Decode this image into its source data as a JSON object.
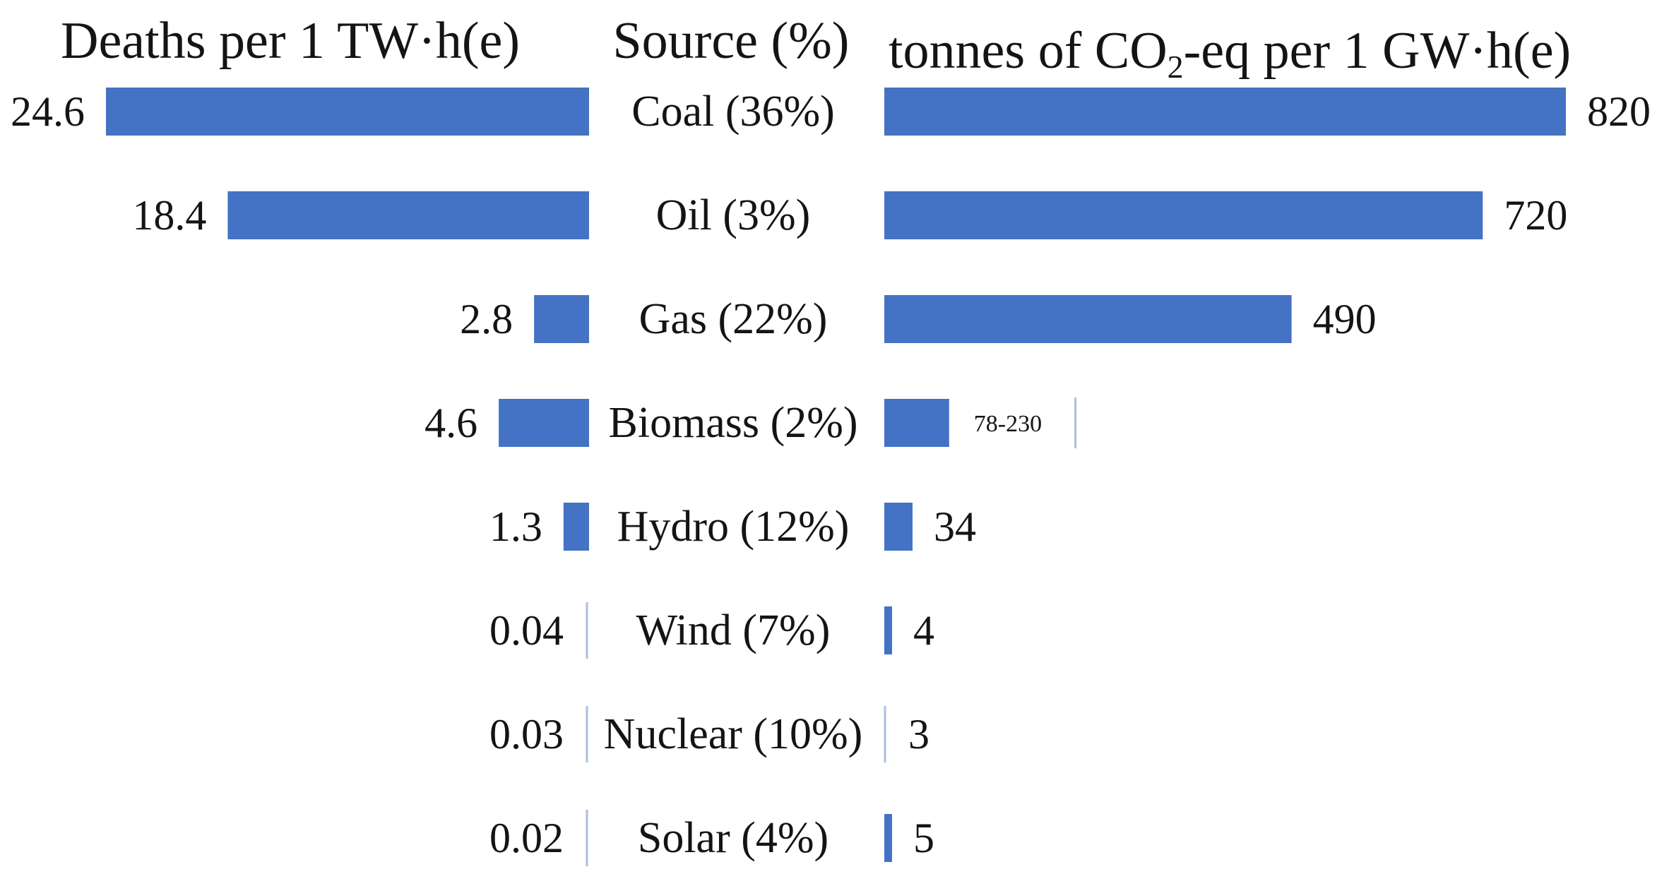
{
  "chart_data": {
    "type": "bar",
    "layout": "back-to-back horizontal bars",
    "headers": {
      "left_title": "Deaths per 1 TW·h(e)",
      "center_title": "Source (%)",
      "right_title_prefix": "tonnes of CO",
      "right_title_sub": "2",
      "right_title_suffix": "-eq per 1 GW·h(e)"
    },
    "categories": [
      "Coal (36%)",
      "Oil (3%)",
      "Gas (22%)",
      "Biomass (2%)",
      "Hydro (12%)",
      "Wind (7%)",
      "Nuclear (10%)",
      "Solar (4%)"
    ],
    "series": [
      {
        "values": [
          24.6,
          18.4,
          2.8,
          4.6,
          1.3,
          0.04,
          0.03,
          0.02
        ],
        "labels": [
          "24.6",
          "18.4",
          "2.8",
          "4.6",
          "1.3",
          "0.04",
          "0.03",
          "0.02"
        ]
      },
      {
        "values": [
          820,
          720,
          490,
          78,
          34,
          4,
          3,
          5
        ],
        "range_high": [
          null,
          null,
          null,
          230,
          null,
          null,
          null,
          null
        ],
        "labels": [
          "820",
          "720",
          "490",
          "78-230",
          "34",
          "4",
          "3",
          "5"
        ]
      }
    ],
    "bar_color": "#4472C4",
    "thin_line_color": "#A9BFE0",
    "grid": false,
    "legend": "none"
  }
}
